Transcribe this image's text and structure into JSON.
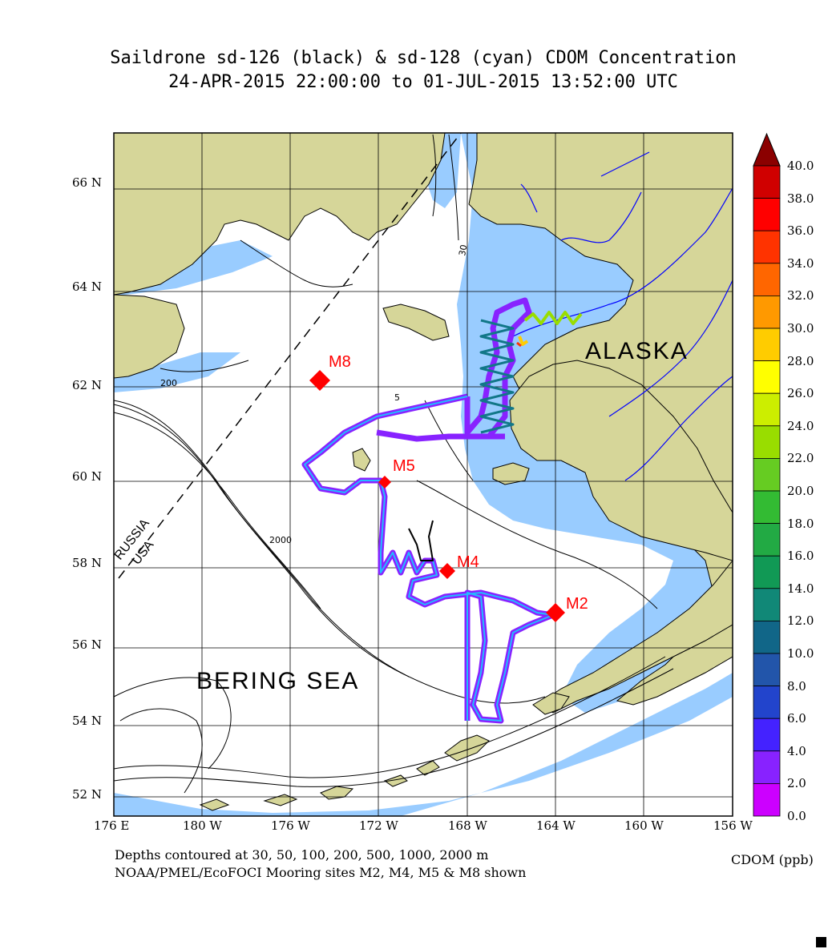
{
  "title_line1": "Saildrone sd-126 (black) & sd-128 (cyan) CDOM Concentration",
  "title_line2": "24-APR-2015 22:00:00 to 01-JUL-2015 13:52:00 UTC",
  "lat_labels": [
    "66 N",
    "64 N",
    "62 N",
    "60 N",
    "58 N",
    "56 N",
    "54 N",
    "52 N"
  ],
  "lon_labels": [
    "176 E",
    "180 W",
    "176 W",
    "172 W",
    "168 W",
    "164 W",
    "160 W",
    "156 W"
  ],
  "regions": {
    "alaska": "ALASKA",
    "bering": "BERING SEA",
    "russia": "RUSSIA",
    "usa": "USA"
  },
  "moorings": [
    {
      "name": "M8",
      "lat": 62.2,
      "lon": -174.7
    },
    {
      "name": "M5",
      "lat": 59.9,
      "lon": -171.7
    },
    {
      "name": "M4",
      "lat": 57.9,
      "lon": -168.9
    },
    {
      "name": "M2",
      "lat": 56.9,
      "lon": -164.1
    }
  ],
  "contour_labels": [
    "30",
    "200",
    "2000",
    "5"
  ],
  "footer_line1": "Depths contoured at 30, 50, 100, 200, 500, 1000, 2000 m",
  "footer_line2": "NOAA/PMEL/EcoFOCI Mooring sites M2, M4, M5 & M8 shown",
  "colorbar": {
    "label": "CDOM (ppb)",
    "ticks": [
      "40.0",
      "38.0",
      "36.0",
      "34.0",
      "32.0",
      "30.0",
      "28.0",
      "26.0",
      "24.0",
      "22.0",
      "20.0",
      "18.0",
      "16.0",
      "14.0",
      "12.0",
      "10.0",
      "8.0",
      "6.0",
      "4.0",
      "2.0",
      "0.0"
    ],
    "colors": [
      "#a00000",
      "#d00000",
      "#ff0000",
      "#ff3300",
      "#ff6600",
      "#ff9900",
      "#ffcc00",
      "#ffff00",
      "#ccee00",
      "#99dd00",
      "#66cc22",
      "#33bb33",
      "#22aa44",
      "#119955",
      "#118877",
      "#116688",
      "#2255aa",
      "#2244cc",
      "#4422ff",
      "#8822ff",
      "#cc00ff"
    ],
    "overflow_color": "#8b0000"
  },
  "colors": {
    "land": "#d6d699",
    "shelf": "#99ccff",
    "mooring": "#ff0000",
    "river": "#0000ff",
    "track_outer": "#8822ff",
    "track_inner": "#22bbff"
  }
}
